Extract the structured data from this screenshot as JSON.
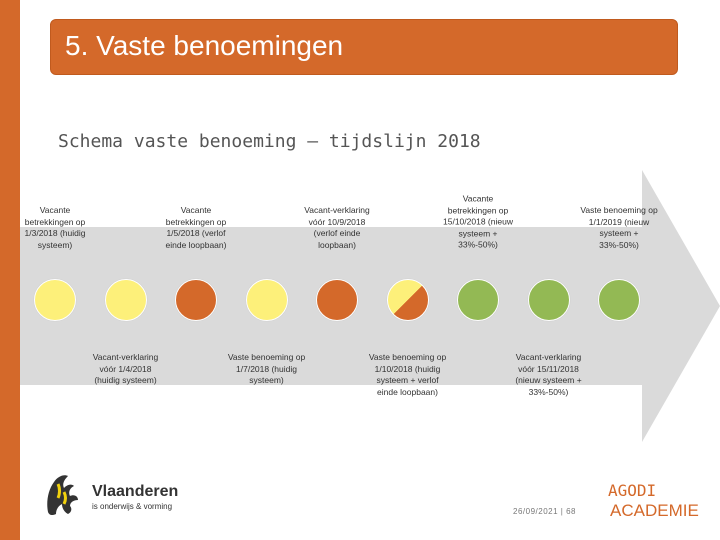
{
  "slide": {
    "title": "5. Vaste benoemingen",
    "subtitle": "Schema vaste benoeming – tijdslijn 2018"
  },
  "colors": {
    "accent": "#d4692a",
    "yellow": "#fdf07a",
    "orange": "#d4692a",
    "green": "#93b954",
    "arrow": "#dadada"
  },
  "timeline": [
    {
      "color": "yellow",
      "label": "Vacante betrekkingen op 1/3/2018 (huidig systeem)"
    },
    {
      "color": "yellow",
      "label": "Vacant-verklaring vóór 1/4/2018 (huidig systeem)"
    },
    {
      "color": "orange",
      "label": "Vacante betrekkingen op 1/5/2018 (verlof einde loopbaan)"
    },
    {
      "color": "yellow",
      "label": "Vaste benoeming op 1/7/2018 (huidig systeem)"
    },
    {
      "color": "orange",
      "label": "Vacant-verklaring vóór 10/9/2018 (verlof einde loopbaan)"
    },
    {
      "color": "split",
      "label": "Vaste benoeming op 1/10/2018 (huidig systeem + verlof einde loopbaan)"
    },
    {
      "color": "green",
      "label": "Vacante betrekkingen op 15/10/2018 (nieuw systeem + 33%-50%)"
    },
    {
      "color": "green",
      "label": "Vacant-verklaring vóór 15/11/2018 (nieuw systeem + 33%-50%)"
    },
    {
      "color": "green",
      "label": "Vaste benoeming op 1/1/2019 (nieuw systeem + 33%-50%)"
    }
  ],
  "footer": {
    "logo_name": "Vlaanderen",
    "logo_tagline": "is onderwijs & vorming",
    "date_page": "26/09/2021 | 68",
    "brand_line1": "AGODI",
    "brand_line2": "ACADEMIE"
  }
}
